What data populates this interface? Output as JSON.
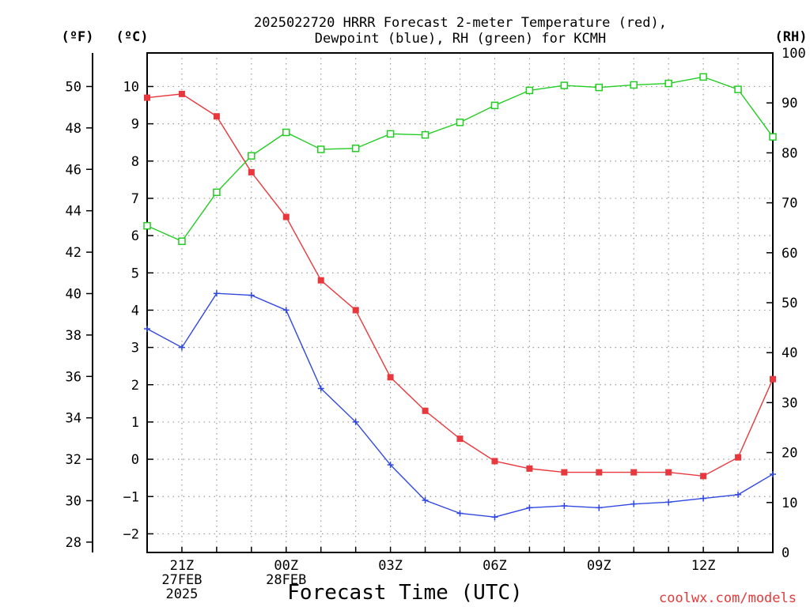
{
  "chart_data": {
    "type": "line",
    "title_lines": [
      "2025022720 HRRR Forecast 2-meter Temperature (red),",
      "Dewpoint (blue), RH (green) for KCMH"
    ],
    "xlabel": "Forecast Time (UTC)",
    "credit": "coolwx.com/models",
    "unit_labels": {
      "left_f": "(ºF)",
      "left_c": "(ºC)",
      "right_rh": "(RH)"
    },
    "x": [
      "20Z",
      "21Z",
      "22Z",
      "23Z",
      "00Z",
      "01Z",
      "02Z",
      "03Z",
      "04Z",
      "05Z",
      "06Z",
      "07Z",
      "08Z",
      "09Z",
      "10Z",
      "11Z",
      "12Z",
      "13Z",
      "14Z"
    ],
    "xlim": [
      0,
      18
    ],
    "x_ticks": [
      {
        "i": 1,
        "lines": [
          "21Z",
          "27FEB",
          "2025"
        ]
      },
      {
        "i": 4,
        "lines": [
          "00Z",
          "28FEB"
        ]
      },
      {
        "i": 7,
        "lines": [
          "03Z"
        ]
      },
      {
        "i": 10,
        "lines": [
          "06Z"
        ]
      },
      {
        "i": 13,
        "lines": [
          "09Z"
        ]
      },
      {
        "i": 16,
        "lines": [
          "12Z"
        ]
      }
    ],
    "y_celsius": {
      "ylim": [
        -2.5,
        10.9
      ],
      "ticks": [
        -2,
        -1,
        0,
        1,
        2,
        3,
        4,
        5,
        6,
        7,
        8,
        9,
        10
      ],
      "tick_labels": [
        "−2",
        "−1",
        "0",
        "1",
        "2",
        "3",
        "4",
        "5",
        "6",
        "7",
        "8",
        "9",
        "10"
      ]
    },
    "y_fahrenheit": {
      "ticks": [
        28,
        30,
        32,
        34,
        36,
        38,
        40,
        42,
        44,
        46,
        48,
        50
      ]
    },
    "y_rh": {
      "ylim": [
        0,
        100
      ],
      "ticks": [
        0,
        10,
        20,
        30,
        40,
        50,
        60,
        70,
        80,
        90,
        100
      ]
    },
    "grid": true,
    "series": [
      {
        "name": "Temperature",
        "axis": "celsius",
        "color": "#e8383d",
        "marker": "filled-square",
        "values": [
          9.7,
          9.8,
          9.2,
          7.7,
          6.5,
          4.8,
          4.0,
          2.2,
          1.3,
          0.55,
          -0.05,
          -0.25,
          -0.35,
          -0.35,
          -0.35,
          -0.35,
          -0.45,
          0.05,
          2.15
        ]
      },
      {
        "name": "Dewpoint",
        "axis": "celsius",
        "color": "#3048e0",
        "marker": "plus",
        "values": [
          3.5,
          3.0,
          4.45,
          4.4,
          4.0,
          1.9,
          1.0,
          -0.15,
          -1.1,
          -1.45,
          -1.55,
          -1.3,
          -1.25,
          -1.3,
          -1.2,
          -1.15,
          -1.05,
          -0.95,
          -0.4
        ]
      },
      {
        "name": "RH",
        "axis": "rh",
        "color": "#22cc22",
        "marker": "open-square",
        "values": [
          65.4,
          62.3,
          72.1,
          79.4,
          84.1,
          80.7,
          80.9,
          83.8,
          83.6,
          86.1,
          89.5,
          92.5,
          93.5,
          93.1,
          93.6,
          93.9,
          95.2,
          92.7,
          83.2
        ]
      }
    ]
  }
}
